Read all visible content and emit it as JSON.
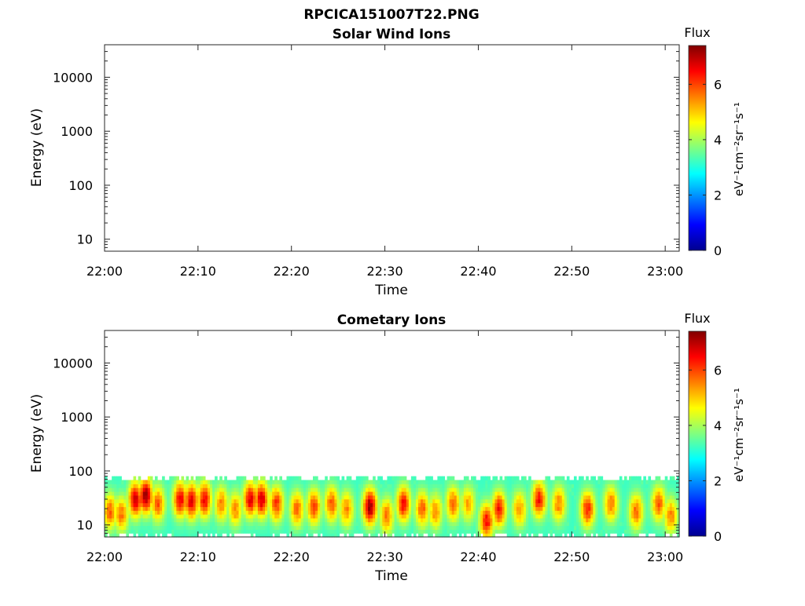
{
  "figure": {
    "title": "RPCICA151007T22.PNG"
  },
  "chart_data": [
    {
      "type": "heatmap",
      "title": "Solar Wind Ions",
      "xlabel": "Time",
      "ylabel": "Energy (eV)",
      "x_tick_labels": [
        "22:00",
        "22:10",
        "22:20",
        "22:30",
        "22:40",
        "22:50",
        "23:00"
      ],
      "y_tick_labels": [
        "10",
        "100",
        "1000",
        "10000"
      ],
      "y_scale": "log",
      "energy_range_eV": [
        6,
        40000
      ],
      "time_range_min": [
        0,
        61.5
      ],
      "colorbar": {
        "label": "Flux",
        "unit_label": "eV⁻¹cm⁻²sr⁻¹s⁻¹",
        "ticks": [
          "0",
          "2",
          "4",
          "6"
        ],
        "range": [
          0,
          7.4
        ],
        "colormap": "jet"
      },
      "data": []
    },
    {
      "type": "heatmap",
      "title": "Cometary Ions",
      "xlabel": "Time",
      "ylabel": "Energy (eV)",
      "x_tick_labels": [
        "22:00",
        "22:10",
        "22:20",
        "22:30",
        "22:40",
        "22:50",
        "23:00"
      ],
      "y_tick_labels": [
        "10",
        "100",
        "1000",
        "10000"
      ],
      "y_scale": "log",
      "energy_range_eV": [
        6,
        40000
      ],
      "time_range_min": [
        0,
        61.5
      ],
      "colorbar": {
        "label": "Flux",
        "unit_label": "eV⁻¹cm⁻²sr⁻¹s⁻¹",
        "ticks": [
          "0",
          "2",
          "4",
          "6"
        ],
        "range": [
          0,
          7.4
        ],
        "colormap": "jet"
      },
      "signal_energy_range_eV": [
        6,
        80
      ],
      "bursts": [
        {
          "t": 0.6,
          "peak_eV": 18,
          "flux": 5.6
        },
        {
          "t": 1.8,
          "peak_eV": 16,
          "flux": 5.4
        },
        {
          "t": 3.3,
          "peak_eV": 30,
          "flux": 6.6
        },
        {
          "t": 4.4,
          "peak_eV": 35,
          "flux": 7.0
        },
        {
          "t": 5.7,
          "peak_eV": 25,
          "flux": 5.6
        },
        {
          "t": 8.1,
          "peak_eV": 30,
          "flux": 6.4
        },
        {
          "t": 9.3,
          "peak_eV": 28,
          "flux": 6.5
        },
        {
          "t": 10.7,
          "peak_eV": 30,
          "flux": 6.3
        },
        {
          "t": 12.5,
          "peak_eV": 25,
          "flux": 5.3
        },
        {
          "t": 14.0,
          "peak_eV": 20,
          "flux": 5.2
        },
        {
          "t": 15.6,
          "peak_eV": 30,
          "flux": 6.4
        },
        {
          "t": 16.8,
          "peak_eV": 30,
          "flux": 6.6
        },
        {
          "t": 18.4,
          "peak_eV": 25,
          "flux": 5.9
        },
        {
          "t": 20.6,
          "peak_eV": 20,
          "flux": 5.5
        },
        {
          "t": 22.4,
          "peak_eV": 22,
          "flux": 5.8
        },
        {
          "t": 24.3,
          "peak_eV": 25,
          "flux": 5.6
        },
        {
          "t": 25.9,
          "peak_eV": 20,
          "flux": 5.3
        },
        {
          "t": 28.4,
          "peak_eV": 22,
          "flux": 7.0
        },
        {
          "t": 30.2,
          "peak_eV": 15,
          "flux": 5.4
        },
        {
          "t": 32.0,
          "peak_eV": 25,
          "flux": 6.2
        },
        {
          "t": 34.0,
          "peak_eV": 20,
          "flux": 5.6
        },
        {
          "t": 35.4,
          "peak_eV": 18,
          "flux": 5.2
        },
        {
          "t": 37.3,
          "peak_eV": 25,
          "flux": 5.5
        },
        {
          "t": 38.9,
          "peak_eV": 25,
          "flux": 5.0
        },
        {
          "t": 40.9,
          "peak_eV": 12,
          "flux": 6.2
        },
        {
          "t": 42.2,
          "peak_eV": 20,
          "flux": 6.2
        },
        {
          "t": 44.4,
          "peak_eV": 20,
          "flux": 5.2
        },
        {
          "t": 46.5,
          "peak_eV": 30,
          "flux": 6.2
        },
        {
          "t": 48.6,
          "peak_eV": 25,
          "flux": 5.3
        },
        {
          "t": 51.7,
          "peak_eV": 20,
          "flux": 6.0
        },
        {
          "t": 54.2,
          "peak_eV": 25,
          "flux": 5.4
        },
        {
          "t": 56.9,
          "peak_eV": 18,
          "flux": 5.5
        },
        {
          "t": 59.3,
          "peak_eV": 25,
          "flux": 5.6
        },
        {
          "t": 60.6,
          "peak_eV": 15,
          "flux": 5.3
        }
      ]
    }
  ]
}
